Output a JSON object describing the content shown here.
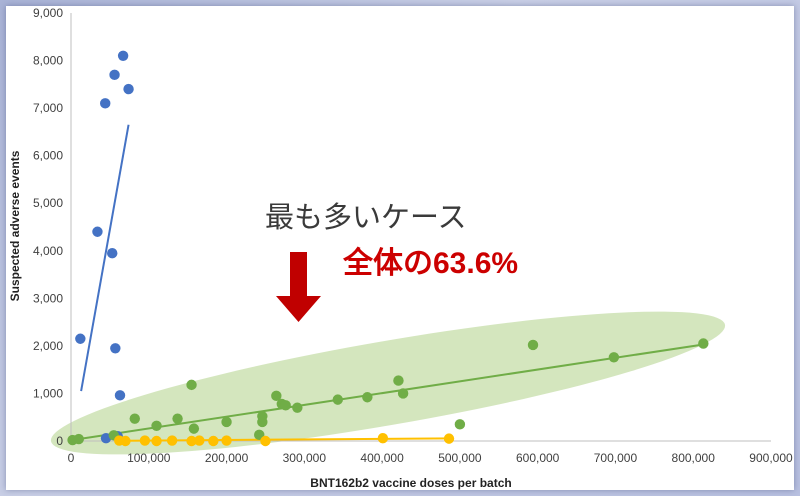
{
  "chart_data": {
    "type": "scatter",
    "xlabel": "BNT162b2 vaccine doses per batch",
    "ylabel": "Suspected adverse events",
    "xlim": [
      0,
      900000
    ],
    "ylim": [
      0,
      9000
    ],
    "x_ticks": [
      "0",
      "100,000",
      "200,000",
      "300,000",
      "400,000",
      "500,000",
      "600,000",
      "700,000",
      "800,000",
      "900,000"
    ],
    "y_ticks": [
      "0",
      "1,000",
      "2,000",
      "3,000",
      "4,000",
      "5,000",
      "6,000",
      "7,000",
      "8,000",
      "9,000"
    ],
    "grid": false,
    "legend": "none",
    "series": [
      {
        "color": "#4472c4",
        "points": [
          [
            12000,
            2150
          ],
          [
            34000,
            4400
          ],
          [
            44000,
            7100
          ],
          [
            53000,
            3950
          ],
          [
            56000,
            7700
          ],
          [
            57000,
            1950
          ],
          [
            63000,
            960
          ],
          [
            67000,
            8100
          ],
          [
            74000,
            7400
          ],
          [
            45000,
            60
          ],
          [
            60000,
            100
          ]
        ],
        "trend": [
          [
            13000,
            1050
          ],
          [
            74000,
            6650
          ]
        ]
      },
      {
        "color": "#70ad47",
        "points": [
          [
            2000,
            20
          ],
          [
            10000,
            40
          ],
          [
            55000,
            120
          ],
          [
            82000,
            470
          ],
          [
            110000,
            320
          ],
          [
            137000,
            470
          ],
          [
            155000,
            1180
          ],
          [
            158000,
            260
          ],
          [
            200000,
            400
          ],
          [
            242000,
            130
          ],
          [
            246000,
            400
          ],
          [
            246000,
            520
          ],
          [
            264000,
            950
          ],
          [
            271000,
            780
          ],
          [
            276000,
            750
          ],
          [
            291000,
            700
          ],
          [
            343000,
            870
          ],
          [
            381000,
            920
          ],
          [
            421000,
            1270
          ],
          [
            427000,
            1000
          ],
          [
            500000,
            350
          ],
          [
            594000,
            2020
          ],
          [
            698000,
            1760
          ],
          [
            813000,
            2050
          ]
        ],
        "trend": [
          [
            2000,
            20
          ],
          [
            813000,
            2030
          ]
        ]
      },
      {
        "color": "#ffc000",
        "points": [
          [
            62000,
            10
          ],
          [
            70000,
            0
          ],
          [
            95000,
            10
          ],
          [
            110000,
            0
          ],
          [
            130000,
            10
          ],
          [
            155000,
            0
          ],
          [
            165000,
            10
          ],
          [
            183000,
            0
          ],
          [
            200000,
            10
          ],
          [
            250000,
            0
          ],
          [
            401000,
            60
          ],
          [
            486000,
            50
          ]
        ],
        "trend": [
          [
            60000,
            5
          ],
          [
            490000,
            55
          ]
        ]
      }
    ],
    "annotation_line1": "最も多いケース",
    "annotation_line2": "全体の63.6%"
  }
}
